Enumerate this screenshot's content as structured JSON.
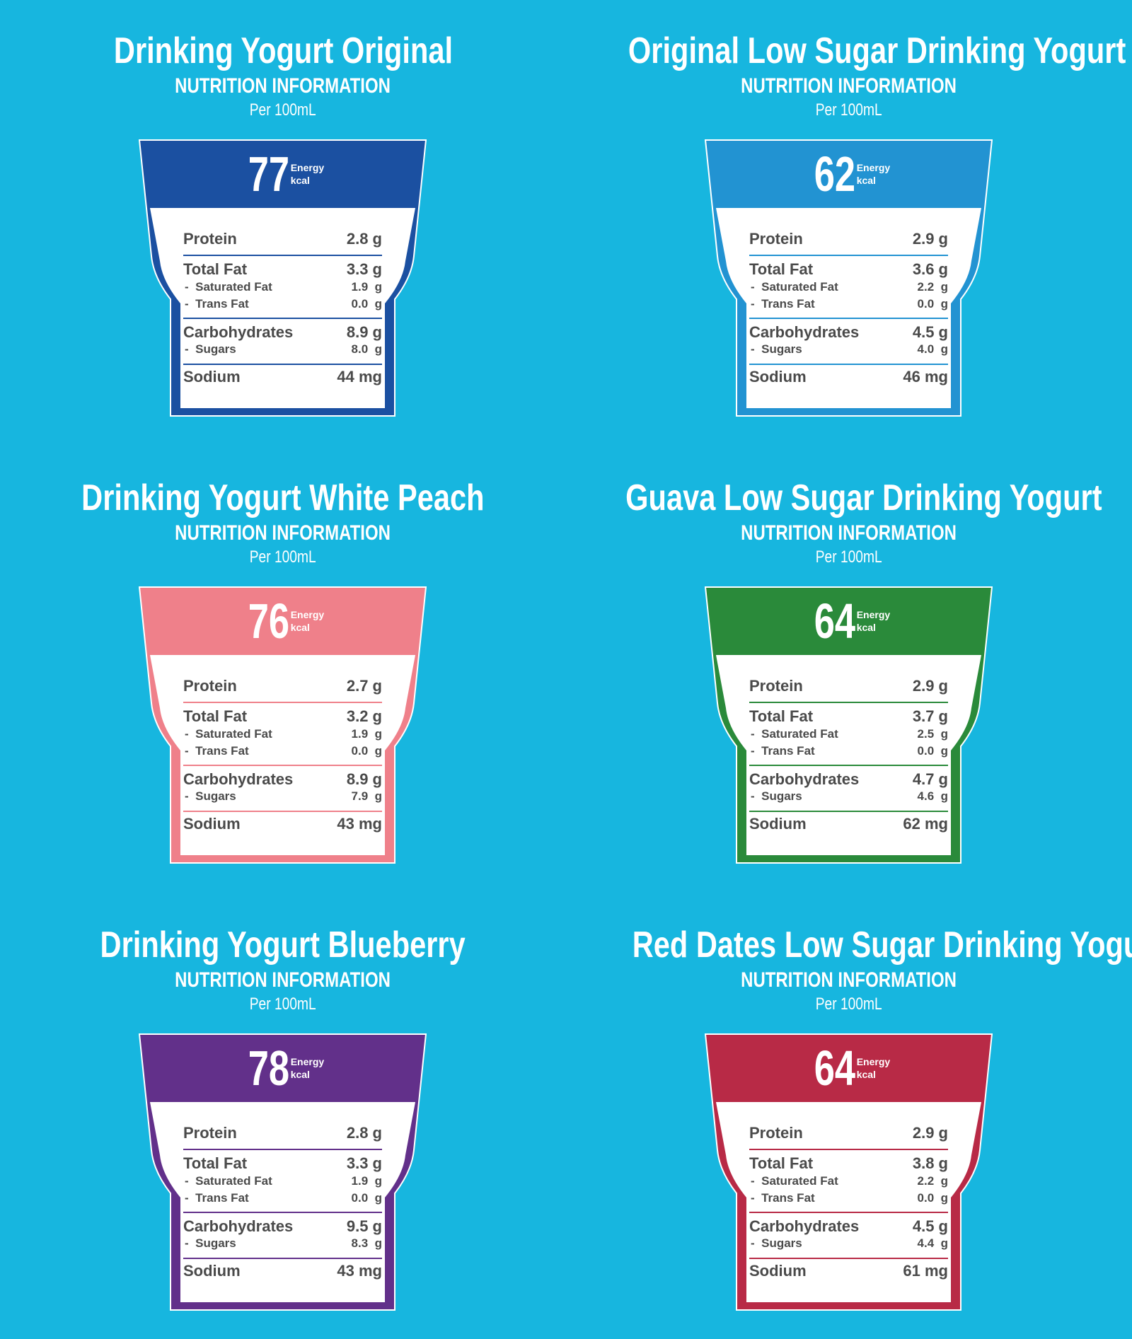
{
  "panels": [
    {
      "title": "Drinking Yogurt Original",
      "subtitle": "NUTRITION INFORMATION",
      "serving": "Per 100mL",
      "color": "#1b50a1",
      "energy": {
        "value": 77,
        "label": "Energy",
        "unit": "kcal"
      },
      "rows": [
        {
          "label": "Protein",
          "value": "2.8 g"
        },
        {
          "label": "Total Fat",
          "value": "3.3 g"
        },
        {
          "label": "-  Saturated Fat",
          "value": "1.9  g"
        },
        {
          "label": "-  Trans Fat",
          "value": "0.0  g"
        },
        {
          "label": "Carbohydrates",
          "value": "8.9 g"
        },
        {
          "label": "-  Sugars",
          "value": "8.0  g"
        },
        {
          "label": "Sodium",
          "value": "44 mg"
        }
      ]
    },
    {
      "title": "Original Low Sugar Drinking Yogurt",
      "subtitle": "NUTRITION INFORMATION",
      "serving": "Per 100mL",
      "color": "#2293d2",
      "energy": {
        "value": 62,
        "label": "Energy",
        "unit": "kcal"
      },
      "rows": [
        {
          "label": "Protein",
          "value": "2.9 g"
        },
        {
          "label": "Total Fat",
          "value": "3.6 g"
        },
        {
          "label": "-  Saturated Fat",
          "value": "2.2  g"
        },
        {
          "label": "-  Trans Fat",
          "value": "0.0  g"
        },
        {
          "label": "Carbohydrates",
          "value": "4.5 g"
        },
        {
          "label": "-  Sugars",
          "value": "4.0  g"
        },
        {
          "label": "Sodium",
          "value": "46 mg"
        }
      ]
    },
    {
      "title": "Drinking Yogurt White Peach",
      "subtitle": "NUTRITION INFORMATION",
      "serving": "Per 100mL",
      "color": "#ef808a",
      "energy": {
        "value": 76,
        "label": "Energy",
        "unit": "kcal"
      },
      "rows": [
        {
          "label": "Protein",
          "value": "2.7 g"
        },
        {
          "label": "Total Fat",
          "value": "3.2 g"
        },
        {
          "label": "-  Saturated Fat",
          "value": "1.9  g"
        },
        {
          "label": "-  Trans Fat",
          "value": "0.0  g"
        },
        {
          "label": "Carbohydrates",
          "value": "8.9 g"
        },
        {
          "label": "-  Sugars",
          "value": "7.9  g"
        },
        {
          "label": "Sodium",
          "value": "43 mg"
        }
      ]
    },
    {
      "title": "Guava Low Sugar Drinking Yogurt",
      "subtitle": "NUTRITION INFORMATION",
      "serving": "Per 100mL",
      "color": "#2a8a3a",
      "energy": {
        "value": 64,
        "label": "Energy",
        "unit": "kcal"
      },
      "rows": [
        {
          "label": "Protein",
          "value": "2.9 g"
        },
        {
          "label": "Total Fat",
          "value": "3.7 g"
        },
        {
          "label": "-  Saturated Fat",
          "value": "2.5  g"
        },
        {
          "label": "-  Trans Fat",
          "value": "0.0  g"
        },
        {
          "label": "Carbohydrates",
          "value": "4.7 g"
        },
        {
          "label": "-  Sugars",
          "value": "4.6  g"
        },
        {
          "label": "Sodium",
          "value": "62 mg"
        }
      ]
    },
    {
      "title": "Drinking Yogurt Blueberry",
      "subtitle": "NUTRITION INFORMATION",
      "serving": "Per 100mL",
      "color": "#62308a",
      "energy": {
        "value": 78,
        "label": "Energy",
        "unit": "kcal"
      },
      "rows": [
        {
          "label": "Protein",
          "value": "2.8 g"
        },
        {
          "label": "Total Fat",
          "value": "3.3 g"
        },
        {
          "label": "-  Saturated Fat",
          "value": "1.9  g"
        },
        {
          "label": "-  Trans Fat",
          "value": "0.0  g"
        },
        {
          "label": "Carbohydrates",
          "value": "9.5 g"
        },
        {
          "label": "-  Sugars",
          "value": "8.3  g"
        },
        {
          "label": "Sodium",
          "value": "43 mg"
        }
      ]
    },
    {
      "title": "Red Dates Low Sugar Drinking Yogurt",
      "subtitle": "NUTRITION INFORMATION",
      "serving": "Per 100mL",
      "color": "#b82a46",
      "energy": {
        "value": 64,
        "label": "Energy",
        "unit": "kcal"
      },
      "rows": [
        {
          "label": "Protein",
          "value": "2.9 g"
        },
        {
          "label": "Total Fat",
          "value": "3.8 g"
        },
        {
          "label": "-  Saturated Fat",
          "value": "2.2  g"
        },
        {
          "label": "-  Trans Fat",
          "value": "0.0  g"
        },
        {
          "label": "Carbohydrates",
          "value": "4.5 g"
        },
        {
          "label": "-  Sugars",
          "value": "4.4  g"
        },
        {
          "label": "Sodium",
          "value": "61 mg"
        }
      ]
    }
  ]
}
